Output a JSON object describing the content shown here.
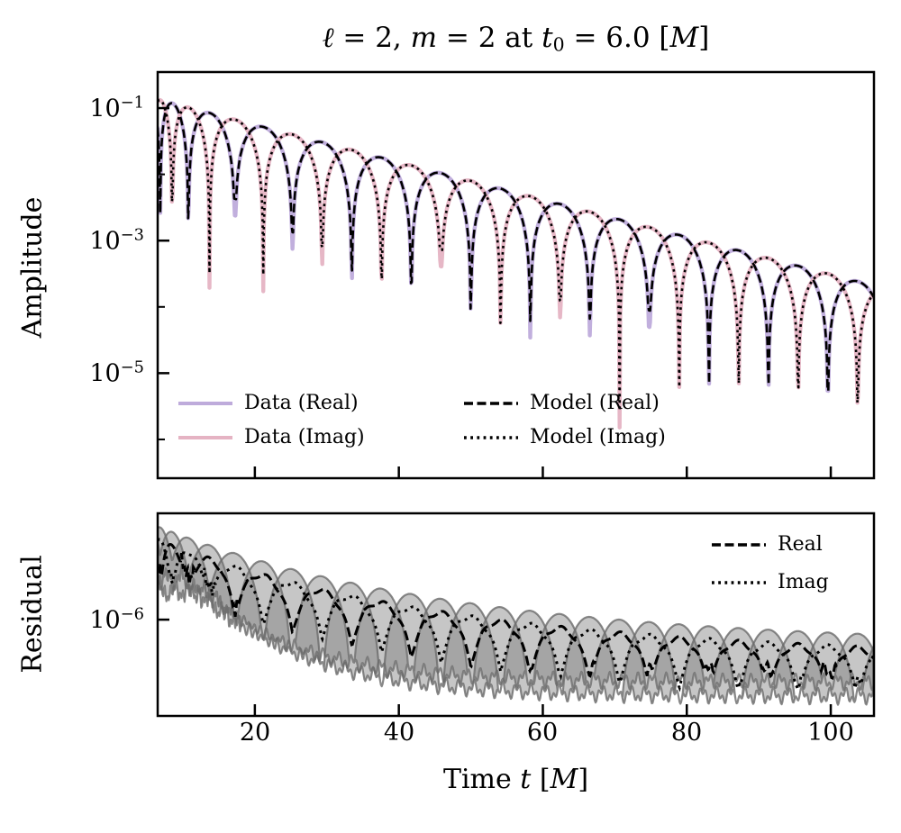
{
  "title": {
    "segments": [
      {
        "text": "ℓ",
        "style": "italic"
      },
      {
        "text": " = 2, ",
        "style": "roman"
      },
      {
        "text": "m",
        "style": "italic"
      },
      {
        "text": " = 2 at ",
        "style": "roman"
      },
      {
        "text": "t",
        "style": "italic"
      },
      {
        "text": "0",
        "style": "sub"
      },
      {
        "text": " = 6.0 [",
        "style": "roman"
      },
      {
        "text": "M",
        "style": "italic"
      },
      {
        "text": "]",
        "style": "roman"
      }
    ]
  },
  "colors": {
    "data_real": "#beabdb",
    "data_imag": "#e5b3c3",
    "model": "#000000",
    "residual_fill": "#777777",
    "residual_outline": "#6a6a6a",
    "axis": "#000000",
    "background": "#ffffff"
  },
  "top_panel": {
    "ylabel": "Amplitude",
    "yticks": [
      {
        "base": "10",
        "exp": "−1"
      },
      {
        "base": "10",
        "exp": "−3"
      },
      {
        "base": "10",
        "exp": "−5"
      }
    ],
    "legend": [
      {
        "label": "Data (Real)",
        "style": "solid",
        "color_key": "data_real"
      },
      {
        "label": "Data (Imag)",
        "style": "solid",
        "color_key": "data_imag"
      },
      {
        "label": "Model (Real)",
        "style": "dashed",
        "color_key": "model"
      },
      {
        "label": "Model (Imag)",
        "style": "dotted",
        "color_key": "model"
      }
    ]
  },
  "bottom_panel": {
    "ylabel": "Residual",
    "yticks": [
      {
        "base": "10",
        "exp": "−6"
      }
    ],
    "legend": [
      {
        "label": "Real",
        "style": "dashed",
        "color_key": "model"
      },
      {
        "label": "Imag",
        "style": "dotted",
        "color_key": "model"
      }
    ]
  },
  "xaxis": {
    "ticks": [
      "20",
      "40",
      "60",
      "80",
      "100"
    ],
    "label_segments": [
      {
        "text": "Time ",
        "style": "roman"
      },
      {
        "text": "t",
        "style": "italic"
      },
      {
        "text": " [",
        "style": "roman"
      },
      {
        "text": "M",
        "style": "italic"
      },
      {
        "text": "]",
        "style": "roman"
      }
    ]
  },
  "chart_data": [
    {
      "type": "line",
      "panel": "amplitude",
      "title": "ℓ = 2, m = 2 at t0 = 6.0 [M]",
      "xlabel": "Time t [M]",
      "ylabel": "Amplitude",
      "yscale": "log",
      "xlim": [
        6.5,
        106
      ],
      "ylim": [
        2.6e-07,
        0.35
      ],
      "xticks": [
        20,
        40,
        60,
        80,
        100
      ],
      "ytick_values": [
        0.1,
        0.001,
        1e-05
      ],
      "grid": false,
      "legend_position": "lower left, two columns, frameless",
      "model": "A(t)=A0*exp(-lambda*(t-tref)); Real=A*|cos(phase(t))|, Imag=A*|sin(phase(t))|; phase(t)=omega*(t-tref)+chirp_rad*(1-exp(-(t-tref)/chirp_tau))+phi0",
      "params": {
        "A0": 0.135,
        "lambda": 0.065,
        "omega": 0.38,
        "phi0": 1.19,
        "tref": 6.5,
        "chirp_rad": 2.7,
        "chirp_tau": 3.5
      },
      "envelope_samples": {
        "t": [
          10,
          20,
          30,
          40,
          50,
          60,
          70,
          80,
          90,
          100
        ],
        "amplitude": [
          0.1075,
          0.0561,
          0.0293,
          0.0153,
          0.008,
          0.00417,
          0.00218,
          0.00114,
          0.000593,
          0.00031
        ]
      },
      "series": [
        {
          "name": "Data (Real)",
          "kind": "damped",
          "trig": "cos",
          "color_key": "data_real",
          "linestyle": "solid",
          "linewidth": 4.4,
          "seed": 1.3,
          "tip_lift": 0
        },
        {
          "name": "Data (Imag)",
          "kind": "damped",
          "trig": "sin",
          "color_key": "data_imag",
          "linestyle": "solid",
          "linewidth": 4.4,
          "seed": 7.7,
          "tip_lift": 0
        },
        {
          "name": "Model (Real)",
          "kind": "damped",
          "trig": "cos",
          "color_key": "model",
          "linestyle": "dashed",
          "linewidth": 2.6,
          "seed": 1.3,
          "tip_lift": 0.25
        },
        {
          "name": "Model (Imag)",
          "kind": "damped",
          "trig": "sin",
          "color_key": "model",
          "linestyle": "dotted",
          "linewidth": 2.6,
          "seed": 7.7,
          "tip_lift": 0.25
        }
      ]
    },
    {
      "type": "area",
      "panel": "residual",
      "ylabel": "Residual",
      "yscale": "log",
      "xlim": [
        6.5,
        106
      ],
      "ylim": [
        1.07e-07,
        1.18e-05
      ],
      "ytick_values": [
        1e-06
      ],
      "grid": false,
      "legend_position": "upper right, frameless",
      "model": "gray translucent bands |residual| filled between oscillatory envelope and noise floor; black dashed/dotted lines track envelope",
      "omega": 0.38,
      "phi0": 1.19,
      "tref": 6.5,
      "chirp_rad": 2.7,
      "chirp_tau": 3.5,
      "envelope": {
        "E0_log10": -5.06,
        "depth_decades": 1.2,
        "tau": 42
      },
      "floor": {
        "start_log10_real": -5.58,
        "start_log10_imag": -5.72,
        "drop_decades": 1.05,
        "tau": 14,
        "delay_real": 10,
        "delay_imag": 13.5
      },
      "envelope_samples": {
        "t": [
          10,
          20,
          30,
          40,
          50,
          60,
          70,
          80,
          90,
          100
        ],
        "residual": [
          6.9e-06,
          4.1e-06,
          2.7e-06,
          1.9e-06,
          1.5e-06,
          1.2e-06,
          1e-06,
          8.7e-07,
          7.9e-07,
          7.3e-07
        ]
      },
      "series": [
        {
          "name": "Real",
          "kind": "band",
          "trig": "cos",
          "mix_width": 8,
          "seed": 2.0
        },
        {
          "name": "Imag",
          "kind": "band",
          "trig": "sin",
          "mix_width": 10.5,
          "seed": 5.0
        },
        {
          "name": "Real",
          "kind": "resline",
          "trig": "cos",
          "linestyle": "dashed",
          "linewidth": 3,
          "seed": 2.0
        },
        {
          "name": "Imag",
          "kind": "resline",
          "trig": "sin",
          "linestyle": "dotted",
          "linewidth": 3,
          "seed": 5.0
        }
      ]
    }
  ]
}
